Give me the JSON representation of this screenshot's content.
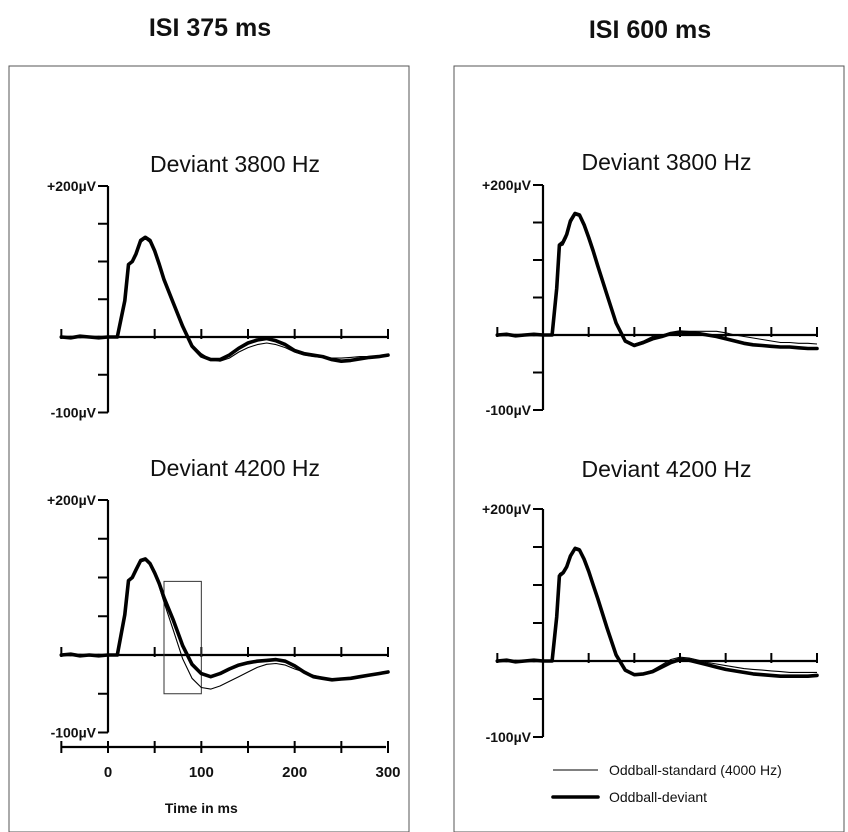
{
  "chart_data": [
    {
      "type": "line",
      "column_title": "ISI 375 ms",
      "title": "Deviant 3800 Hz",
      "ylim": [
        -100,
        200
      ],
      "ytick_labels": [
        "+200µV",
        "-100µV"
      ],
      "xlim": [
        -50,
        300
      ],
      "series": [
        {
          "name": "Oddball-standard (4000 Hz)",
          "x": [
            -50,
            -40,
            -30,
            -20,
            -10,
            0,
            10,
            18,
            22,
            26,
            30,
            35,
            40,
            45,
            50,
            55,
            60,
            70,
            80,
            90,
            100,
            110,
            120,
            130,
            140,
            150,
            160,
            170,
            180,
            190,
            200,
            210,
            220,
            230,
            240,
            250,
            260,
            270,
            280,
            290,
            300
          ],
          "y": [
            0,
            1,
            -1,
            0,
            1,
            0,
            0,
            45,
            95,
            100,
            108,
            125,
            130,
            125,
            112,
            95,
            75,
            45,
            15,
            -10,
            -22,
            -30,
            -32,
            -28,
            -20,
            -14,
            -10,
            -8,
            -10,
            -14,
            -20,
            -24,
            -26,
            -27,
            -28,
            -28,
            -27,
            -26,
            -26,
            -25,
            -24
          ]
        },
        {
          "name": "Oddball-deviant",
          "x": [
            -50,
            -40,
            -30,
            -20,
            -10,
            0,
            10,
            18,
            22,
            26,
            30,
            35,
            40,
            45,
            50,
            55,
            60,
            70,
            80,
            90,
            100,
            110,
            120,
            130,
            140,
            150,
            160,
            170,
            180,
            190,
            200,
            210,
            220,
            230,
            240,
            250,
            260,
            270,
            280,
            290,
            300
          ],
          "y": [
            0,
            -1,
            1,
            0,
            -1,
            0,
            0,
            48,
            96,
            100,
            110,
            128,
            132,
            128,
            114,
            96,
            76,
            45,
            14,
            -12,
            -25,
            -30,
            -30,
            -24,
            -15,
            -8,
            -4,
            -2,
            -5,
            -10,
            -18,
            -22,
            -24,
            -26,
            -30,
            -32,
            -31,
            -29,
            -27,
            -26,
            -24
          ]
        }
      ]
    },
    {
      "type": "line",
      "column_title": "ISI 375 ms",
      "title": "Deviant 4200 Hz",
      "ylim": [
        -100,
        200
      ],
      "ytick_labels": [
        "+200µV",
        "-100µV"
      ],
      "xlim": [
        -50,
        300
      ],
      "xlabel": "Time in ms",
      "xtick_labels": [
        "0",
        "100",
        "200",
        "300"
      ],
      "highlight_box": {
        "x": [
          60,
          100
        ],
        "y": [
          -50,
          95
        ]
      },
      "series": [
        {
          "name": "Oddball-standard (4000 Hz)",
          "x": [
            -50,
            -40,
            -30,
            -20,
            -10,
            0,
            10,
            18,
            22,
            26,
            30,
            35,
            40,
            45,
            50,
            55,
            60,
            70,
            80,
            90,
            100,
            110,
            120,
            130,
            140,
            150,
            160,
            170,
            180,
            190,
            200,
            210,
            220,
            230,
            240,
            250,
            260,
            270,
            280,
            290,
            300
          ],
          "y": [
            0,
            -1,
            1,
            0,
            1,
            0,
            0,
            50,
            95,
            100,
            108,
            120,
            122,
            116,
            104,
            88,
            68,
            32,
            -5,
            -30,
            -42,
            -44,
            -40,
            -34,
            -28,
            -22,
            -16,
            -12,
            -11,
            -13,
            -18,
            -22,
            -26,
            -29,
            -31,
            -32,
            -30,
            -28,
            -26,
            -24,
            -22
          ]
        },
        {
          "name": "Oddball-deviant",
          "x": [
            -50,
            -40,
            -30,
            -20,
            -10,
            0,
            10,
            18,
            22,
            26,
            30,
            35,
            40,
            45,
            50,
            55,
            60,
            70,
            80,
            90,
            100,
            110,
            120,
            130,
            140,
            150,
            160,
            170,
            180,
            190,
            200,
            210,
            220,
            230,
            240,
            250,
            260,
            270,
            280,
            290,
            300
          ],
          "y": [
            0,
            1,
            -1,
            0,
            -1,
            0,
            0,
            52,
            96,
            100,
            110,
            122,
            124,
            118,
            106,
            92,
            74,
            45,
            12,
            -12,
            -24,
            -28,
            -24,
            -18,
            -13,
            -10,
            -8,
            -7,
            -6,
            -8,
            -14,
            -22,
            -28,
            -30,
            -32,
            -31,
            -30,
            -28,
            -26,
            -24,
            -22
          ]
        }
      ]
    },
    {
      "type": "line",
      "column_title": "ISI 600 ms",
      "title": "Deviant 3800 Hz",
      "ylim": [
        -100,
        200
      ],
      "ytick_labels": [
        "+200µV",
        "-100µV"
      ],
      "xlim": [
        -50,
        300
      ],
      "series": [
        {
          "name": "Oddball-standard (4000 Hz)",
          "x": [
            -50,
            -40,
            -30,
            -20,
            -10,
            0,
            10,
            15,
            18,
            22,
            26,
            30,
            35,
            40,
            45,
            50,
            55,
            60,
            70,
            80,
            90,
            100,
            110,
            120,
            130,
            140,
            150,
            160,
            170,
            180,
            190,
            200,
            210,
            220,
            230,
            240,
            250,
            260,
            270,
            280,
            290,
            300
          ],
          "y": [
            0,
            -1,
            1,
            0,
            -1,
            0,
            0,
            60,
            118,
            120,
            130,
            148,
            160,
            158,
            145,
            128,
            110,
            90,
            52,
            15,
            -10,
            -12,
            -8,
            -2,
            0,
            3,
            5,
            5,
            5,
            5,
            5,
            3,
            0,
            -2,
            -4,
            -6,
            -8,
            -10,
            -10,
            -11,
            -11,
            -12
          ]
        },
        {
          "name": "Oddball-deviant",
          "x": [
            -50,
            -40,
            -30,
            -20,
            -10,
            0,
            10,
            15,
            18,
            22,
            26,
            30,
            35,
            40,
            45,
            50,
            55,
            60,
            70,
            80,
            90,
            100,
            110,
            120,
            130,
            140,
            150,
            160,
            170,
            180,
            190,
            200,
            210,
            220,
            230,
            240,
            250,
            260,
            270,
            280,
            290,
            300
          ],
          "y": [
            0,
            1,
            -1,
            0,
            1,
            0,
            0,
            62,
            120,
            124,
            134,
            152,
            162,
            160,
            147,
            130,
            112,
            92,
            54,
            16,
            -8,
            -14,
            -10,
            -5,
            -2,
            2,
            4,
            3,
            2,
            0,
            -2,
            -5,
            -8,
            -11,
            -13,
            -14,
            -15,
            -16,
            -16,
            -17,
            -18,
            -18
          ]
        }
      ]
    },
    {
      "type": "line",
      "column_title": "ISI 600 ms",
      "title": "Deviant 4200 Hz",
      "ylim": [
        -100,
        200
      ],
      "ytick_labels": [
        "+200µV",
        "-100µV"
      ],
      "xlim": [
        -50,
        300
      ],
      "series": [
        {
          "name": "Oddball-standard (4000 Hz)",
          "x": [
            -50,
            -40,
            -30,
            -20,
            -10,
            0,
            10,
            15,
            18,
            22,
            26,
            30,
            35,
            40,
            45,
            50,
            55,
            60,
            70,
            80,
            90,
            100,
            110,
            120,
            130,
            140,
            150,
            160,
            170,
            180,
            190,
            200,
            210,
            220,
            230,
            240,
            250,
            260,
            270,
            280,
            290,
            300
          ],
          "y": [
            0,
            -1,
            1,
            0,
            -1,
            0,
            0,
            60,
            115,
            118,
            126,
            140,
            150,
            148,
            136,
            120,
            102,
            84,
            46,
            10,
            -12,
            -18,
            -16,
            -12,
            -5,
            2,
            5,
            4,
            1,
            -2,
            -4,
            -6,
            -8,
            -10,
            -11,
            -12,
            -13,
            -14,
            -15,
            -15,
            -15,
            -15
          ]
        },
        {
          "name": "Oddball-deviant",
          "x": [
            -50,
            -40,
            -30,
            -20,
            -10,
            0,
            10,
            15,
            18,
            22,
            26,
            30,
            35,
            40,
            45,
            50,
            55,
            60,
            70,
            80,
            90,
            100,
            110,
            120,
            130,
            140,
            150,
            160,
            170,
            180,
            190,
            200,
            210,
            220,
            230,
            240,
            250,
            260,
            270,
            280,
            290,
            300
          ],
          "y": [
            0,
            1,
            -1,
            0,
            1,
            0,
            0,
            58,
            112,
            116,
            124,
            138,
            148,
            146,
            134,
            118,
            100,
            82,
            44,
            8,
            -12,
            -18,
            -17,
            -14,
            -8,
            -2,
            2,
            1,
            -2,
            -5,
            -8,
            -11,
            -13,
            -15,
            -17,
            -18,
            -19,
            -20,
            -20,
            -20,
            -20,
            -19
          ]
        }
      ]
    }
  ],
  "column_titles": [
    "ISI 375 ms",
    "ISI 600 ms"
  ],
  "legend": {
    "placement": "bottom-right",
    "entries": [
      {
        "label": "Oddball-standard (4000 Hz)",
        "style": "thin"
      },
      {
        "label": "Oddball-deviant",
        "style": "thick"
      }
    ]
  },
  "axis_labels": {
    "plus": "+200µV",
    "minus": "-100µV"
  },
  "xaxis": {
    "label": "Time in ms",
    "ticks": [
      "0",
      "100",
      "200",
      "300"
    ]
  }
}
